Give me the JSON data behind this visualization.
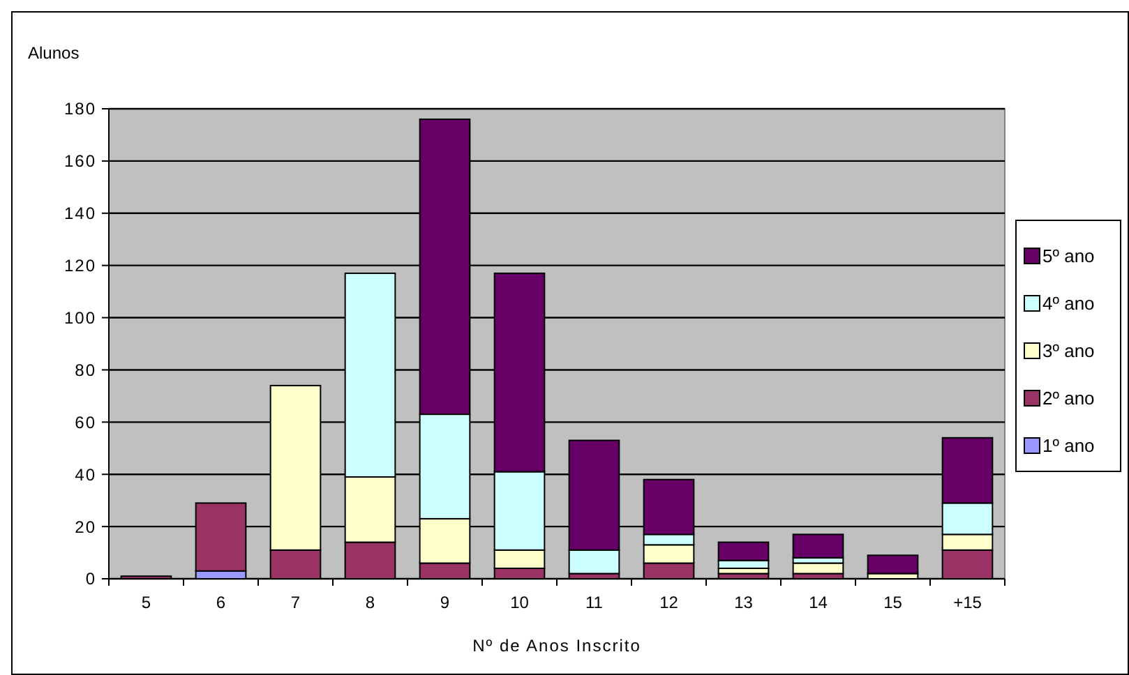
{
  "chart_data": {
    "type": "bar",
    "stacked": true,
    "xlabel": "Nº de Anos Inscrito",
    "ylabel": "Alunos",
    "categories": [
      "5",
      "6",
      "7",
      "8",
      "9",
      "10",
      "11",
      "12",
      "13",
      "14",
      "15",
      "+15"
    ],
    "ylim": [
      0,
      180
    ],
    "yticks": [
      0,
      20,
      40,
      60,
      80,
      100,
      120,
      140,
      160,
      180
    ],
    "grid": "y",
    "legend": "right",
    "series": [
      {
        "name": "1º ano",
        "color": "#9999ff",
        "values": [
          0,
          3,
          0,
          0,
          0,
          0,
          0,
          0,
          0,
          0,
          0,
          0
        ]
      },
      {
        "name": "2º ano",
        "color": "#993366",
        "values": [
          1,
          26,
          11,
          14,
          6,
          4,
          2,
          6,
          2,
          2,
          0,
          11
        ]
      },
      {
        "name": "3º ano",
        "color": "#ffffcc",
        "values": [
          0,
          0,
          63,
          25,
          17,
          7,
          0,
          7,
          2,
          4,
          2,
          6
        ]
      },
      {
        "name": "4º ano",
        "color": "#ccffff",
        "values": [
          0,
          0,
          0,
          78,
          40,
          30,
          9,
          4,
          3,
          2,
          0,
          12
        ]
      },
      {
        "name": "5º ano",
        "color": "#660066",
        "values": [
          0,
          0,
          0,
          0,
          113,
          76,
          42,
          21,
          7,
          9,
          7,
          25
        ]
      }
    ]
  }
}
